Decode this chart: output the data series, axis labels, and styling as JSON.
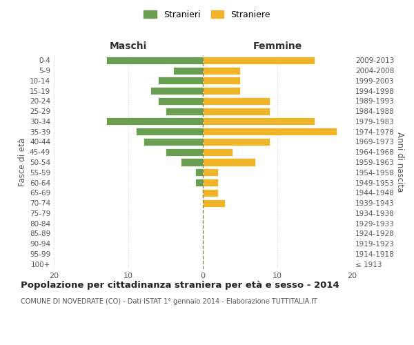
{
  "age_groups": [
    "100+",
    "95-99",
    "90-94",
    "85-89",
    "80-84",
    "75-79",
    "70-74",
    "65-69",
    "60-64",
    "55-59",
    "50-54",
    "45-49",
    "40-44",
    "35-39",
    "30-34",
    "25-29",
    "20-24",
    "15-19",
    "10-14",
    "5-9",
    "0-4"
  ],
  "birth_years": [
    "≤ 1913",
    "1914-1918",
    "1919-1923",
    "1924-1928",
    "1929-1933",
    "1934-1938",
    "1939-1943",
    "1944-1948",
    "1949-1953",
    "1954-1958",
    "1959-1963",
    "1964-1968",
    "1969-1973",
    "1974-1978",
    "1979-1983",
    "1984-1988",
    "1989-1993",
    "1994-1998",
    "1999-2003",
    "2004-2008",
    "2009-2013"
  ],
  "maschi": [
    0,
    0,
    0,
    0,
    0,
    0,
    0,
    0,
    1,
    1,
    3,
    5,
    8,
    9,
    13,
    5,
    6,
    7,
    6,
    4,
    13
  ],
  "femmine": [
    0,
    0,
    0,
    0,
    0,
    0,
    3,
    2,
    2,
    2,
    7,
    4,
    9,
    18,
    15,
    9,
    9,
    5,
    5,
    5,
    15
  ],
  "maschi_color": "#6a9e52",
  "femmine_color": "#f0b429",
  "bar_edge_color": "white",
  "grid_color": "#cccccc",
  "dashed_line_color": "#888855",
  "background_color": "#ffffff",
  "title": "Popolazione per cittadinanza straniera per età e sesso - 2014",
  "subtitle": "COMUNE DI NOVEDRATE (CO) - Dati ISTAT 1° gennaio 2014 - Elaborazione TUTTITALIA.IT",
  "left_header": "Maschi",
  "right_header": "Femmine",
  "left_ylabel": "Fasce di età",
  "right_ylabel": "Anni di nascita",
  "legend_stranieri": "Stranieri",
  "legend_straniere": "Straniere",
  "xlim": 20,
  "xticks": [
    -20,
    -10,
    0,
    10,
    20
  ],
  "xticklabels": [
    "20",
    "10",
    "0",
    "10",
    "20"
  ]
}
